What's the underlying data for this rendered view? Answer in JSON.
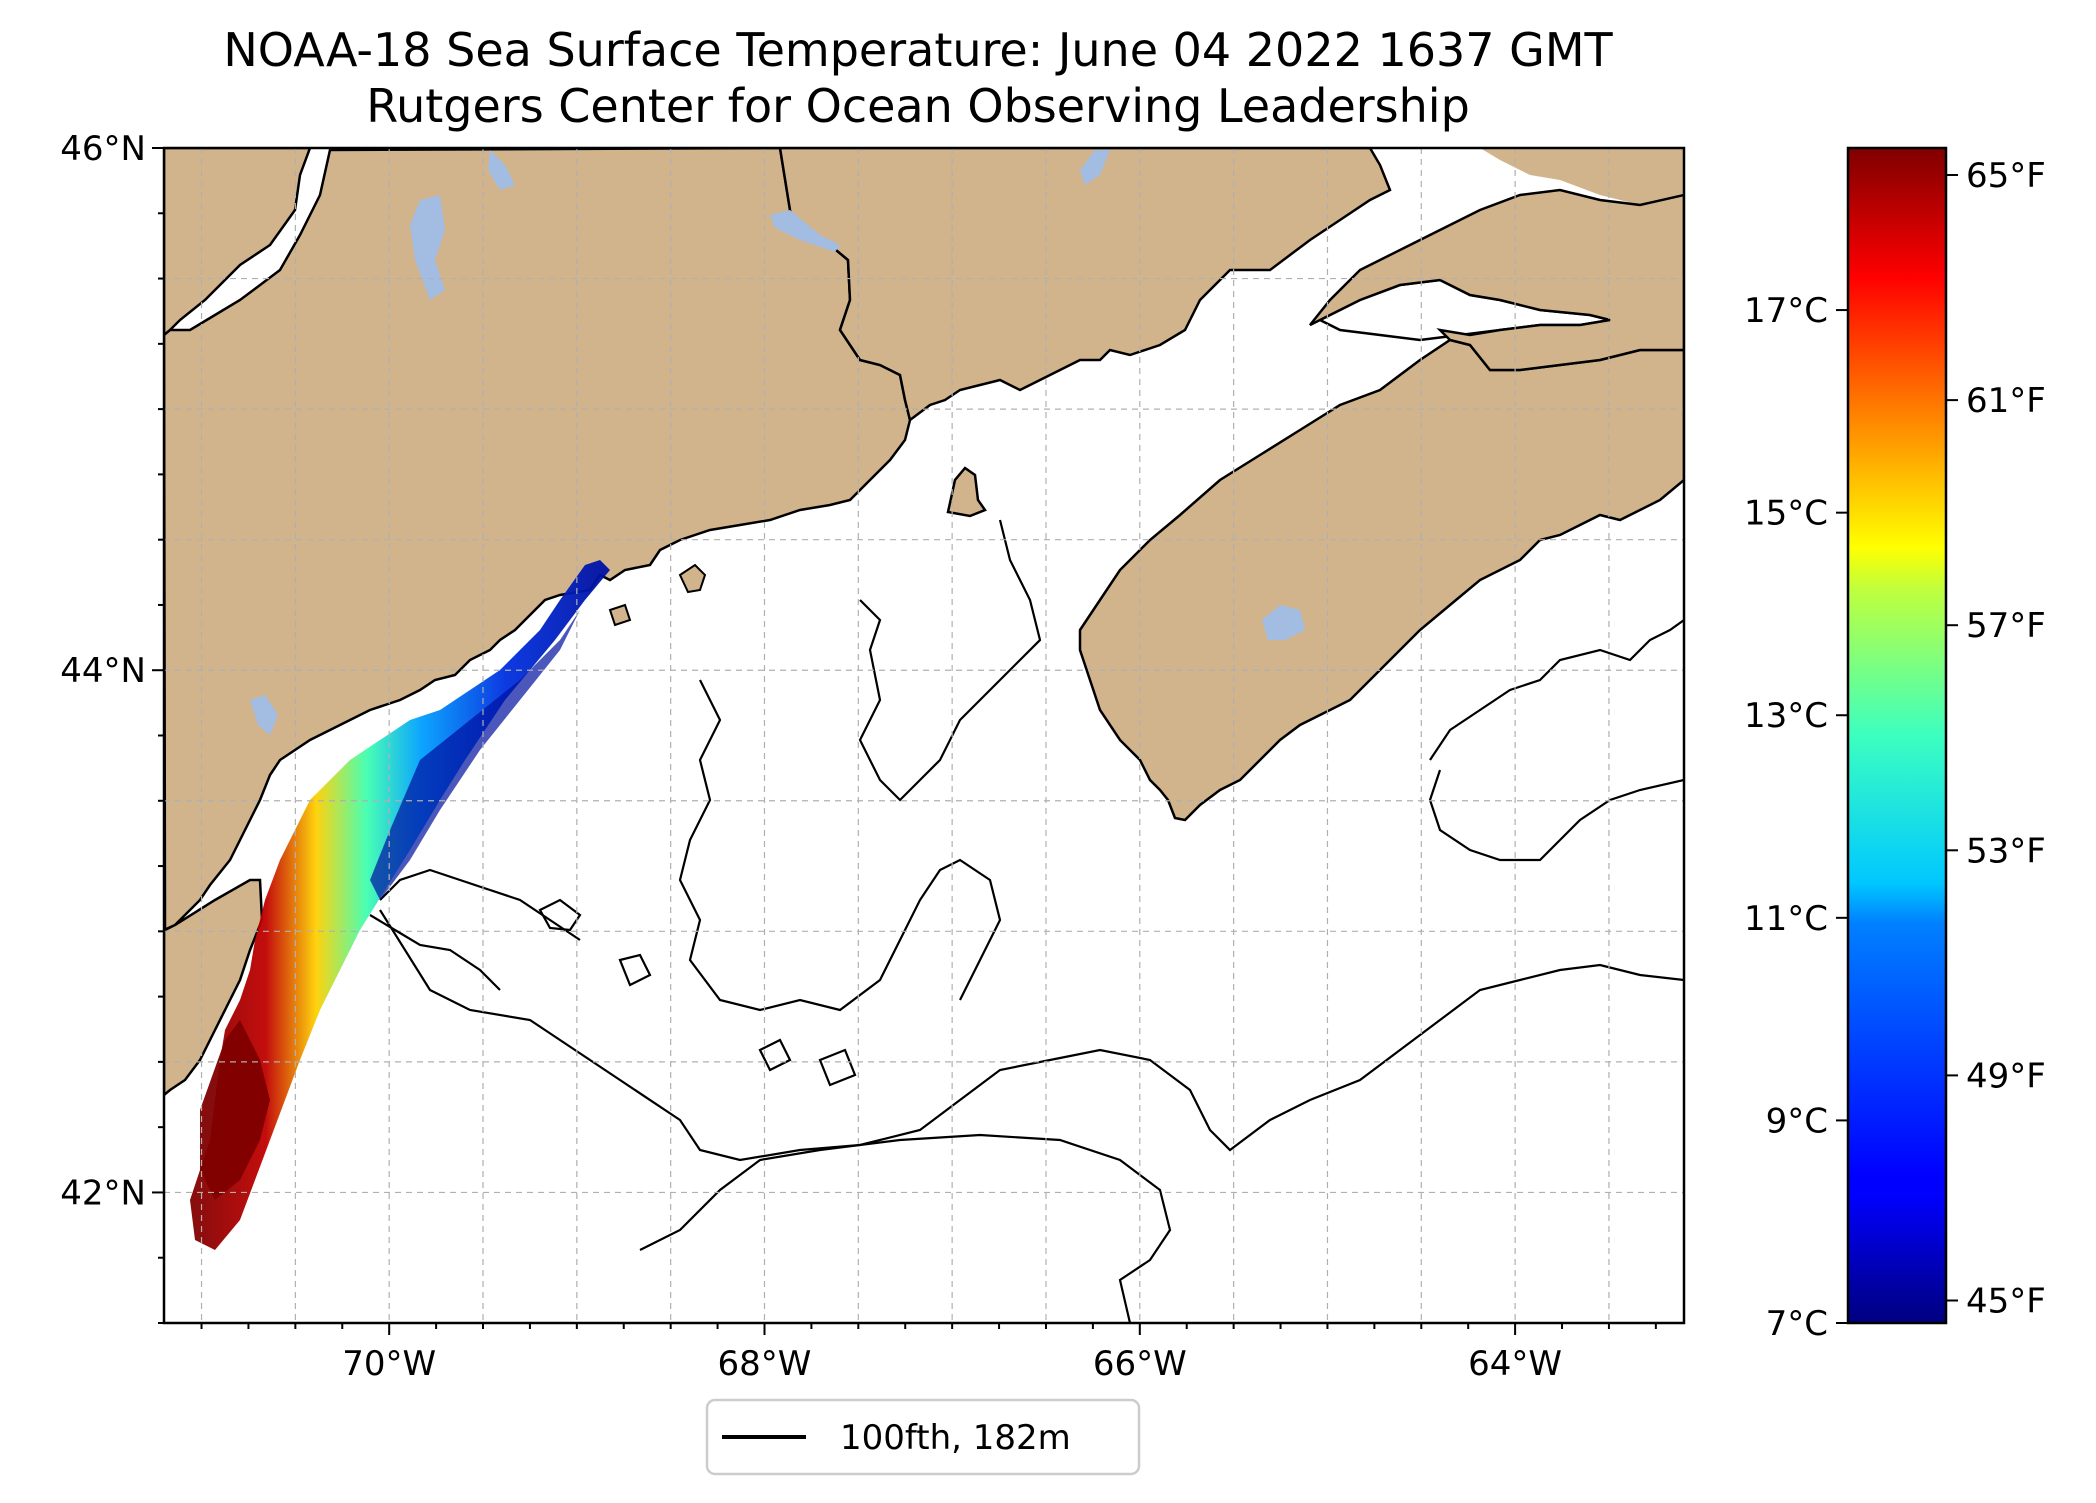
{
  "title": {
    "line1": "NOAA-18 Sea Surface Temperature: June 04 2022 1637 GMT",
    "line2": "Rutgers Center for Ocean Observing Leadership"
  },
  "map": {
    "lon_range": [
      -71.2,
      -63.1
    ],
    "lat_range": [
      41.5,
      46.0
    ],
    "lat_labels": [
      {
        "value": 46,
        "label": "46°N"
      },
      {
        "value": 44,
        "label": "44°N"
      },
      {
        "value": 42,
        "label": "42°N"
      }
    ],
    "lon_labels": [
      {
        "value": -70,
        "label": "70°W"
      },
      {
        "value": -68,
        "label": "68°W"
      },
      {
        "value": -66,
        "label": "66°W"
      },
      {
        "value": -64,
        "label": "64°W"
      }
    ],
    "grid_lon_step": 0.5,
    "grid_lat_step": 0.5,
    "colors": {
      "land": "#D2B48C",
      "lakes": "#A3BCE2",
      "ocean": "#FFFFFF",
      "grid": "#B0B0B0"
    }
  },
  "legend": {
    "label": "100fth, 182m",
    "line_color": "#000000"
  },
  "colorbar": {
    "colormap": "jet",
    "range_c": [
      7,
      18.6
    ],
    "celsius_ticks": [
      {
        "value": 7,
        "label": "7°C"
      },
      {
        "value": 9,
        "label": "9°C"
      },
      {
        "value": 11,
        "label": "11°C"
      },
      {
        "value": 13,
        "label": "13°C"
      },
      {
        "value": 15,
        "label": "15°C"
      },
      {
        "value": 17,
        "label": "17°C"
      }
    ],
    "fahrenheit_ticks": [
      {
        "value": 45,
        "label": "45°F"
      },
      {
        "value": 49,
        "label": "49°F"
      },
      {
        "value": 53,
        "label": "53°F"
      },
      {
        "value": 57,
        "label": "57°F"
      },
      {
        "value": 61,
        "label": "61°F"
      },
      {
        "value": 65,
        "label": "65°F"
      }
    ]
  },
  "sst_swath": {
    "description_values_c": {
      "offshore_min": 7.5,
      "gulf_typical": 9,
      "coastal_max": 18.5
    }
  }
}
